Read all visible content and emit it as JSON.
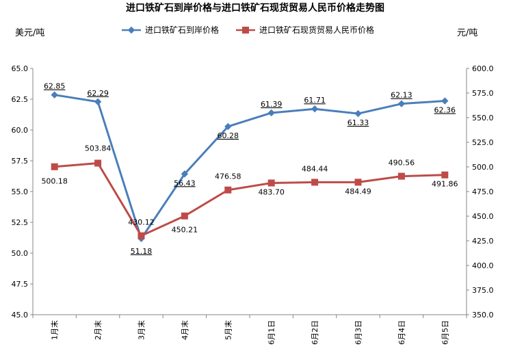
{
  "chart_data": {
    "type": "line",
    "title": "进口铁矿石到岸价格与进口铁矿石现货贸易人民币价格走势图",
    "ylabel_left": "美元/吨",
    "ylabel_right": "元/吨",
    "categories": [
      "1月末",
      "2月末",
      "3月末",
      "4月末",
      "5月末",
      "6月1日",
      "6月2日",
      "6月3日",
      "6月4日",
      "6月5日"
    ],
    "y_left": {
      "min": 45.0,
      "max": 65.0,
      "ticks": [
        "45.0",
        "47.5",
        "50.0",
        "52.5",
        "55.0",
        "57.5",
        "60.0",
        "62.5",
        "65.0"
      ]
    },
    "y_right": {
      "min": 350.0,
      "max": 600.0,
      "ticks": [
        "350.0",
        "375.0",
        "400.0",
        "425.0",
        "450.0",
        "475.0",
        "500.0",
        "525.0",
        "550.0",
        "575.0",
        "600.0"
      ]
    },
    "series": [
      {
        "name": "进口铁矿石到岸价格",
        "axis": "left",
        "color": "#4a7ebb",
        "marker": "diamond",
        "values": [
          62.85,
          62.29,
          51.18,
          56.43,
          60.28,
          61.39,
          61.71,
          61.33,
          62.13,
          62.36
        ],
        "labels": [
          "62.85",
          "62.29",
          "51.18",
          "56.43",
          "60.28",
          "61.39",
          "61.71",
          "61.33",
          "62.13",
          "62.36"
        ]
      },
      {
        "name": "进口铁矿石现货贸易人民币价格",
        "axis": "right",
        "color": "#be4b48",
        "marker": "square",
        "values": [
          500.18,
          503.84,
          430.12,
          450.21,
          476.58,
          483.7,
          484.44,
          484.49,
          490.56,
          491.86
        ],
        "labels": [
          "500.18",
          "503.84",
          "430.12",
          "450.21",
          "476.58",
          "483.70",
          "484.44",
          "484.49",
          "490.56",
          "491.86"
        ]
      }
    ],
    "legend_position": "top",
    "grid": false
  }
}
